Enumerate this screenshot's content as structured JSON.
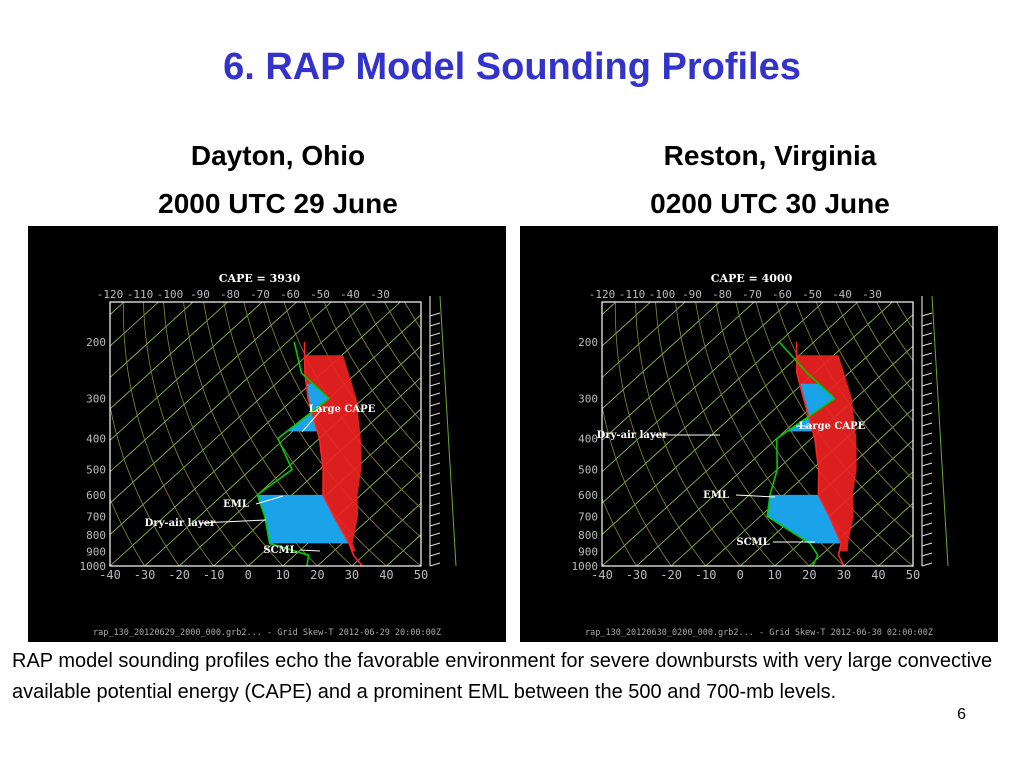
{
  "slide": {
    "title": "6. RAP Model Sounding Profiles",
    "caption": "RAP model sounding profiles echo the favorable environment for severe downbursts with very large convective available potential energy (CAPE) and a prominent EML between the 500 and 700-mb levels.",
    "page_number": "6"
  },
  "panels": [
    {
      "location": "Dayton, Ohio",
      "time": "2000 UTC 29 June"
    },
    {
      "location": "Reston, Virginia",
      "time": "0200 UTC 30 June"
    }
  ],
  "colors": {
    "title": "#3333cc",
    "temperature_line": "#ff2222",
    "parcel_fill": "#ee2222",
    "dewpoint_line": "#00cc00",
    "dry_layer_fill": "#1aa3e8",
    "isotherm": "#99cc55",
    "adiabat": "#888833",
    "frame": "#ffffff"
  },
  "chart_data": [
    {
      "type": "skew-t",
      "cape_label": "CAPE = 3930",
      "top_tick_labels": [
        "-120",
        "-110",
        "-100",
        "-90",
        "-80",
        "-70",
        "-60",
        "-50",
        "-40",
        "-30"
      ],
      "bottom_tick_labels": [
        "-40",
        "-30",
        "-20",
        "-10",
        "0",
        "10",
        "20",
        "30",
        "40",
        "50"
      ],
      "pressure_labels": [
        "200",
        "300",
        "400",
        "500",
        "600",
        "700",
        "800",
        "900",
        "1000"
      ],
      "annotations": [
        "Large CAPE",
        "EML",
        "Dry-air layer",
        "SCML"
      ],
      "footer": "rap_130_20120629_2000_000.grb2... - Grid Skew-T 2012-06-29 20:00:00Z",
      "temperature_profile": {
        "p": [
          1000,
          925,
          850,
          700,
          600,
          500,
          400,
          300,
          250,
          200
        ],
        "t": [
          33,
          27,
          22,
          9,
          -1,
          -9,
          -20,
          -36,
          -45,
          -55
        ]
      },
      "dewpoint_profile": {
        "p": [
          1000,
          925,
          850,
          700,
          600,
          500,
          400,
          300,
          250,
          200
        ],
        "td": [
          17,
          14,
          -1,
          -11,
          -20,
          -18,
          -32,
          -30,
          -46,
          -58
        ]
      },
      "parcel_profile": {
        "p": [
          1000,
          850,
          700,
          600,
          500,
          400,
          300,
          200
        ],
        "t": [
          33,
          23,
          16,
          9,
          2,
          -8,
          -22,
          -45
        ]
      }
    },
    {
      "type": "skew-t",
      "cape_label": "CAPE = 4000",
      "top_tick_labels": [
        "-120",
        "-110",
        "-100",
        "-90",
        "-80",
        "-70",
        "-60",
        "-50",
        "-40",
        "-30"
      ],
      "bottom_tick_labels": [
        "-40",
        "-30",
        "-20",
        "-10",
        "0",
        "10",
        "20",
        "30",
        "40",
        "50"
      ],
      "pressure_labels": [
        "200",
        "300",
        "400",
        "500",
        "600",
        "700",
        "800",
        "900",
        "1000"
      ],
      "annotations": [
        "Large CAPE",
        "Dry-air layer",
        "EML",
        "SCML"
      ],
      "footer": "rap_130_20120630_0200_000.grb2... - Grid Skew-T 2012-06-30 02:00:00Z",
      "temperature_profile": {
        "p": [
          1000,
          925,
          850,
          700,
          600,
          500,
          400,
          300,
          250,
          200
        ],
        "t": [
          30,
          25,
          22,
          10,
          0,
          -8,
          -19,
          -35,
          -45,
          -55
        ]
      },
      "dewpoint_profile": {
        "p": [
          1000,
          925,
          850,
          700,
          600,
          500,
          400,
          300,
          250,
          200
        ],
        "td": [
          21,
          19,
          13,
          -8,
          -14,
          -20,
          -30,
          -26,
          -42,
          -60
        ]
      },
      "parcel_profile": {
        "p": [
          1000,
          850,
          700,
          600,
          500,
          400,
          300,
          200
        ],
        "t": [
          31,
          24,
          17,
          10,
          3,
          -7,
          -21,
          -44
        ]
      }
    }
  ]
}
